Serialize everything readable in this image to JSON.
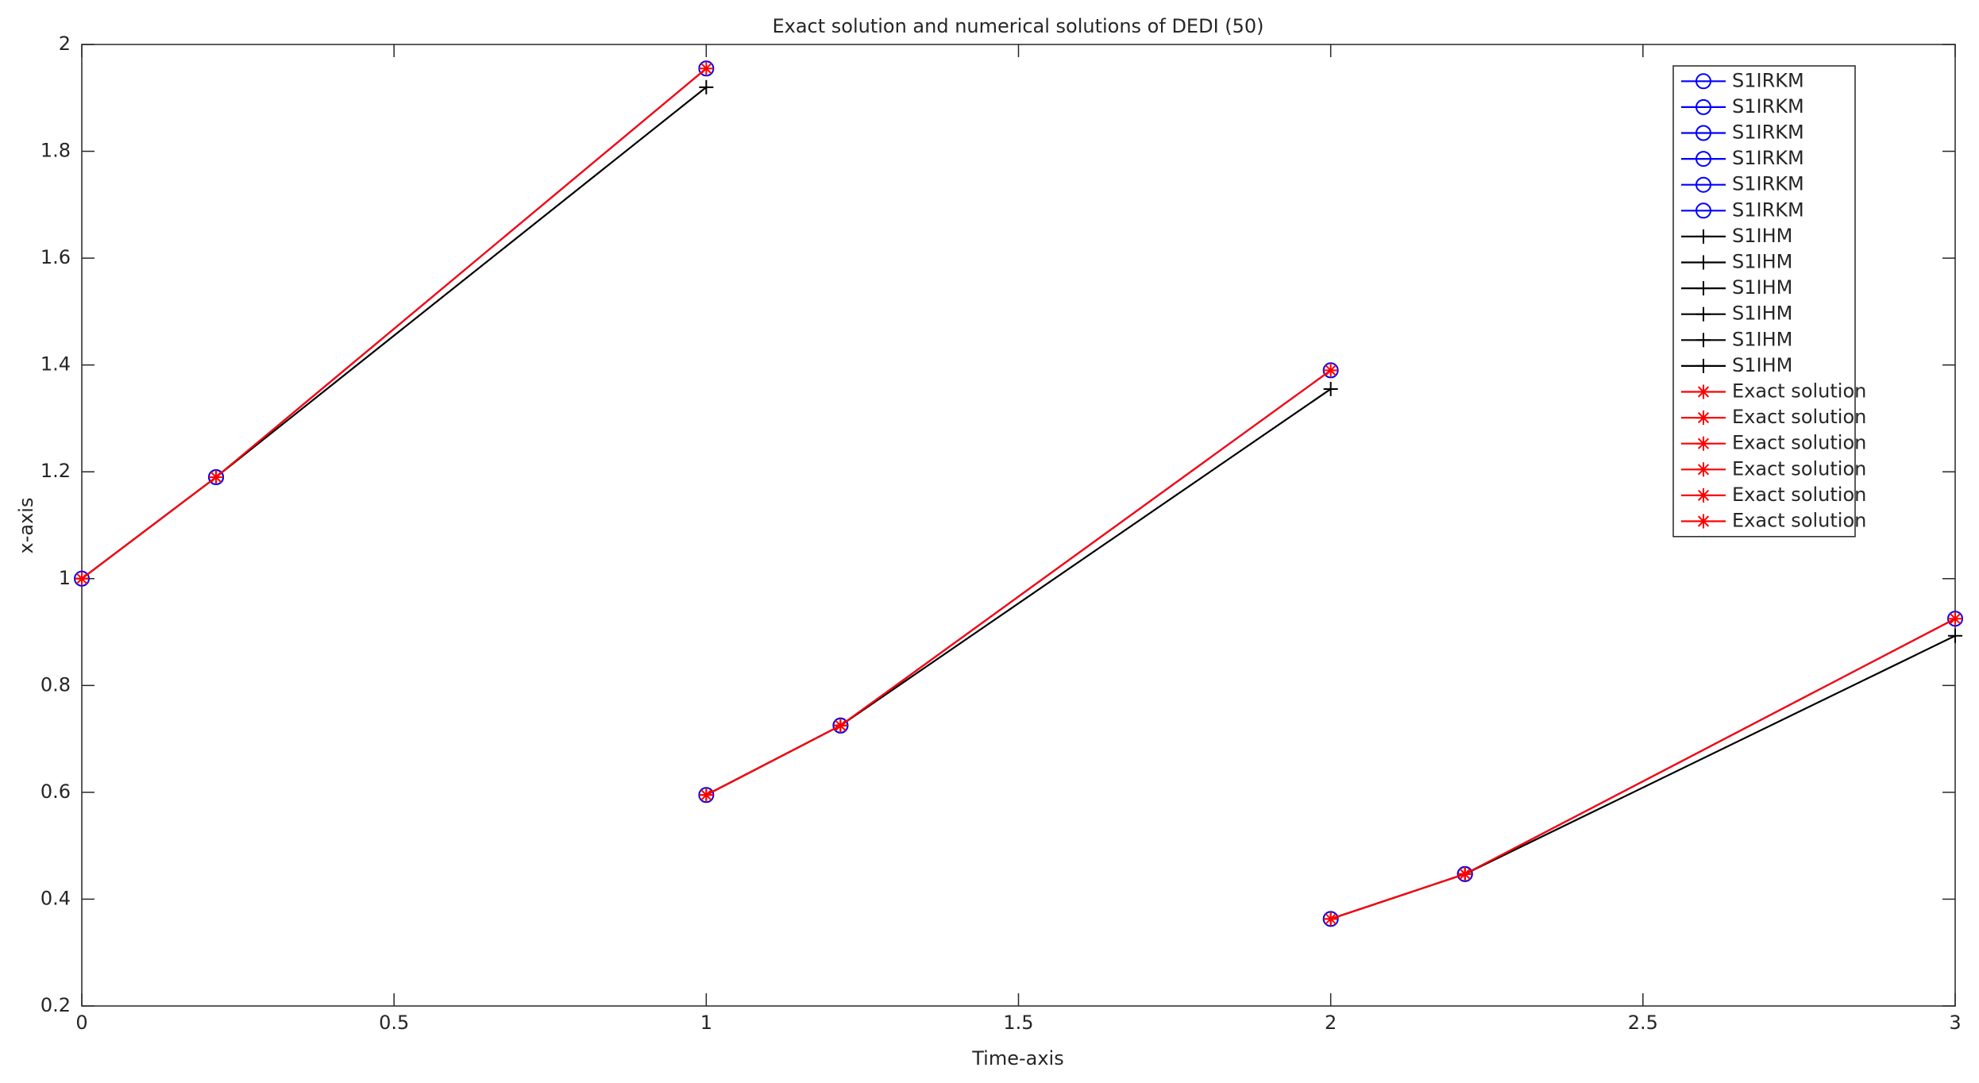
{
  "chart_data": {
    "type": "line",
    "title": "Exact solution and numerical solutions of DEDI (50)",
    "x_label": "Time-axis",
    "y_label": "x-axis",
    "xlim": [
      0,
      3
    ],
    "xticks": [
      0,
      0.5,
      1,
      1.5,
      2,
      2.5,
      3
    ],
    "ylim": [
      0.2,
      2
    ],
    "yticks": [
      0.2,
      0.4,
      0.6,
      0.8,
      1,
      1.2,
      1.4,
      1.6,
      1.8,
      2
    ],
    "grid": false,
    "legend_position": "upper-right",
    "series": [
      {
        "name": "S1IRKM",
        "color": "#0000ff",
        "marker": "o",
        "x": [
          0,
          0.215
        ],
        "values": [
          1.0,
          1.19
        ]
      },
      {
        "name": "S1IRKM",
        "color": "#0000ff",
        "marker": "o",
        "x": [
          0.215,
          1
        ],
        "values": [
          1.19,
          1.955
        ]
      },
      {
        "name": "S1IRKM",
        "color": "#0000ff",
        "marker": "o",
        "x": [
          1,
          1.215
        ],
        "values": [
          0.595,
          0.725
        ]
      },
      {
        "name": "S1IRKM",
        "color": "#0000ff",
        "marker": "o",
        "x": [
          1.215,
          2
        ],
        "values": [
          0.725,
          1.39
        ]
      },
      {
        "name": "S1IRKM",
        "color": "#0000ff",
        "marker": "o",
        "x": [
          2,
          2.215
        ],
        "values": [
          0.363,
          0.447
        ]
      },
      {
        "name": "S1IRKM",
        "color": "#0000ff",
        "marker": "o",
        "x": [
          2.215,
          3
        ],
        "values": [
          0.447,
          0.925
        ]
      },
      {
        "name": "S1IHM",
        "color": "#000000",
        "marker": "+",
        "x": [
          0,
          0.215
        ],
        "values": [
          1.0,
          1.19
        ]
      },
      {
        "name": "S1IHM",
        "color": "#000000",
        "marker": "+",
        "x": [
          0.215,
          1
        ],
        "values": [
          1.19,
          1.92
        ]
      },
      {
        "name": "S1IHM",
        "color": "#000000",
        "marker": "+",
        "x": [
          1,
          1.215
        ],
        "values": [
          0.595,
          0.725
        ]
      },
      {
        "name": "S1IHM",
        "color": "#000000",
        "marker": "+",
        "x": [
          1.215,
          2
        ],
        "values": [
          0.725,
          1.355
        ]
      },
      {
        "name": "S1IHM",
        "color": "#000000",
        "marker": "+",
        "x": [
          2,
          2.215
        ],
        "values": [
          0.363,
          0.447
        ]
      },
      {
        "name": "S1IHM",
        "color": "#000000",
        "marker": "+",
        "x": [
          2.215,
          3
        ],
        "values": [
          0.447,
          0.893
        ]
      },
      {
        "name": "Exact solution",
        "color": "#ff0000",
        "marker": "*",
        "x": [
          0,
          0.215
        ],
        "values": [
          1.0,
          1.19
        ]
      },
      {
        "name": "Exact solution",
        "color": "#ff0000",
        "marker": "*",
        "x": [
          0.215,
          1
        ],
        "values": [
          1.19,
          1.955
        ]
      },
      {
        "name": "Exact solution",
        "color": "#ff0000",
        "marker": "*",
        "x": [
          1,
          1.215
        ],
        "values": [
          0.595,
          0.725
        ]
      },
      {
        "name": "Exact solution",
        "color": "#ff0000",
        "marker": "*",
        "x": [
          1.215,
          2
        ],
        "values": [
          0.725,
          1.39
        ]
      },
      {
        "name": "Exact solution",
        "color": "#ff0000",
        "marker": "*",
        "x": [
          2,
          2.215
        ],
        "values": [
          0.363,
          0.447
        ]
      },
      {
        "name": "Exact solution",
        "color": "#ff0000",
        "marker": "*",
        "x": [
          2.215,
          3
        ],
        "values": [
          0.447,
          0.925
        ]
      }
    ]
  }
}
